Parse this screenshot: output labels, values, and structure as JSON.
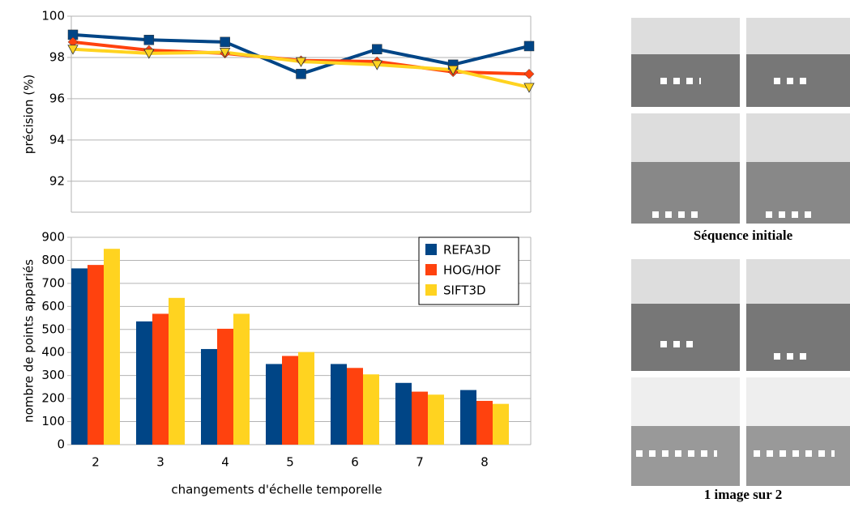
{
  "chart_data": [
    {
      "type": "line",
      "ylabel": "précision (%)",
      "categories": [
        null,
        null,
        null,
        null,
        null,
        null,
        null
      ],
      "ylim": [
        90.5,
        100
      ],
      "yticks": [
        92,
        94,
        96,
        98,
        100
      ],
      "grid": true,
      "series": [
        {
          "color": "#004586",
          "marker": "square",
          "values": [
            99.1,
            98.85,
            98.75,
            97.2,
            98.4,
            97.65,
            98.55
          ]
        },
        {
          "color": "#ff420e",
          "marker": "diamond",
          "values": [
            98.75,
            98.35,
            98.2,
            97.85,
            97.8,
            97.3,
            97.2
          ]
        },
        {
          "color": "#ffd320",
          "marker": "triangle",
          "values": [
            98.4,
            98.2,
            98.25,
            97.8,
            97.65,
            97.4,
            96.55
          ]
        }
      ]
    },
    {
      "type": "bar",
      "ylabel": "nombre de points appariés",
      "xlabel": "changements d'échelle temporelle",
      "categories": [
        "2",
        "3",
        "4",
        "5",
        "6",
        "7",
        "8"
      ],
      "ylim": [
        0,
        900
      ],
      "yticks": [
        0,
        100,
        200,
        300,
        400,
        500,
        600,
        700,
        800,
        900
      ],
      "grid": true,
      "legend": "top-right",
      "series": [
        {
          "name": "REFA3D",
          "color": "#004586",
          "values": [
            765,
            535,
            415,
            350,
            350,
            268,
            237
          ]
        },
        {
          "name": "HOG/HOF",
          "color": "#ff420e",
          "values": [
            780,
            568,
            503,
            385,
            333,
            230,
            190
          ]
        },
        {
          "name": "SIFT3D",
          "color": "#ffd320",
          "values": [
            850,
            637,
            568,
            402,
            305,
            217,
            177
          ]
        }
      ]
    }
  ],
  "captions": [
    "Séquence initiale",
    "1 image sur 2"
  ]
}
